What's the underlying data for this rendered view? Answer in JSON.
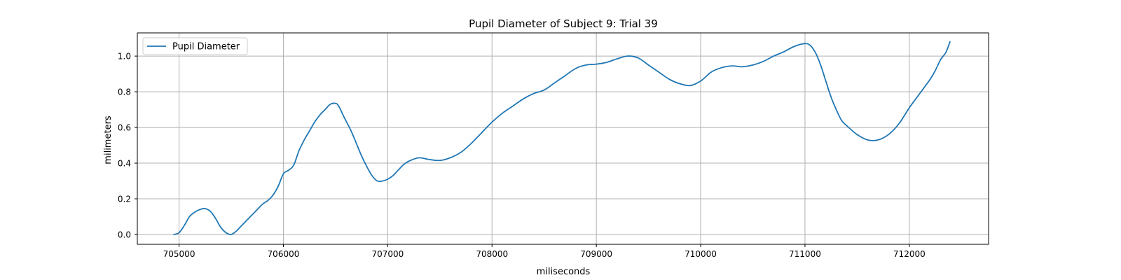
{
  "chart_data": {
    "type": "line",
    "title": "Pupil Diameter of Subject 9: Trial 39",
    "xlabel": "miliseconds",
    "ylabel": "milimeters",
    "xlim": [
      704600,
      712760
    ],
    "ylim": [
      -0.055,
      1.13
    ],
    "xticks": [
      705000,
      706000,
      707000,
      708000,
      709000,
      710000,
      711000,
      712000
    ],
    "yticks": [
      0.0,
      0.2,
      0.4,
      0.6,
      0.8,
      1.0
    ],
    "ytick_labels": [
      "0.0",
      "0.2",
      "0.4",
      "0.6",
      "0.8",
      "1.0"
    ],
    "grid": true,
    "legend": {
      "position": "top-left",
      "entries": [
        "Pupil Diameter"
      ]
    },
    "colors": {
      "series": "#1f77b4"
    },
    "series": [
      {
        "name": "Pupil Diameter",
        "x": [
          704950,
          705000,
          705050,
          705100,
          705150,
          705200,
          705250,
          705300,
          705350,
          705400,
          705450,
          705500,
          705550,
          705600,
          705650,
          705700,
          705750,
          705800,
          705850,
          705900,
          705950,
          706000,
          706050,
          706100,
          706150,
          706200,
          706250,
          706300,
          706350,
          706400,
          706450,
          706500,
          706530,
          706580,
          706650,
          706700,
          706750,
          706800,
          706850,
          706900,
          706950,
          707000,
          707050,
          707100,
          707150,
          707200,
          707300,
          707400,
          707500,
          707600,
          707700,
          707800,
          707900,
          708000,
          708100,
          708200,
          708300,
          708400,
          708500,
          708600,
          708700,
          708800,
          708900,
          709000,
          709100,
          709200,
          709300,
          709400,
          709500,
          709600,
          709700,
          709800,
          709900,
          710000,
          710100,
          710200,
          710300,
          710400,
          710500,
          710600,
          710700,
          710800,
          710900,
          711000,
          711050,
          711100,
          711150,
          711200,
          711250,
          711300,
          711350,
          711400,
          711500,
          711600,
          711700,
          711800,
          711900,
          712000,
          712100,
          712200,
          712250,
          712300,
          712350,
          712390
        ],
        "values": [
          0.0,
          0.01,
          0.05,
          0.1,
          0.125,
          0.14,
          0.145,
          0.13,
          0.09,
          0.04,
          0.01,
          0.0,
          0.02,
          0.05,
          0.08,
          0.11,
          0.14,
          0.17,
          0.19,
          0.22,
          0.27,
          0.34,
          0.36,
          0.39,
          0.47,
          0.53,
          0.58,
          0.63,
          0.67,
          0.7,
          0.73,
          0.735,
          0.72,
          0.66,
          0.58,
          0.51,
          0.44,
          0.38,
          0.33,
          0.3,
          0.3,
          0.31,
          0.33,
          0.36,
          0.39,
          0.41,
          0.43,
          0.42,
          0.415,
          0.43,
          0.46,
          0.51,
          0.57,
          0.63,
          0.68,
          0.72,
          0.76,
          0.79,
          0.81,
          0.85,
          0.89,
          0.93,
          0.95,
          0.955,
          0.965,
          0.985,
          1.0,
          0.99,
          0.95,
          0.91,
          0.87,
          0.845,
          0.835,
          0.86,
          0.91,
          0.935,
          0.945,
          0.94,
          0.95,
          0.97,
          1.0,
          1.025,
          1.055,
          1.07,
          1.06,
          1.02,
          0.95,
          0.86,
          0.77,
          0.7,
          0.64,
          0.61,
          0.56,
          0.53,
          0.53,
          0.56,
          0.62,
          0.71,
          0.79,
          0.87,
          0.92,
          0.98,
          1.02,
          1.08
        ]
      }
    ]
  }
}
